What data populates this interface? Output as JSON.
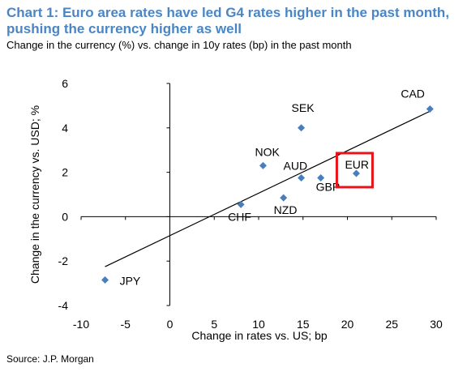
{
  "chart_data": {
    "type": "scatter",
    "title_line1": "Chart 1: Euro area rates have led G4 rates higher in the past month,",
    "title_line2": "pushing the currency higher as well",
    "subtitle": "Change in the currency (%) vs. change in 10y rates (bp) in the past month",
    "xlabel": "Change in rates vs. US; bp",
    "ylabel": "Change in the currency vs. USD; %",
    "xlim": [
      -10,
      30
    ],
    "ylim": [
      -4,
      6
    ],
    "x_ticks": [
      "-10",
      "-5",
      "0",
      "5",
      "10",
      "15",
      "20",
      "25",
      "30"
    ],
    "y_ticks": [
      "6",
      "4",
      "2",
      "0",
      "-2",
      "-4"
    ],
    "points": [
      {
        "label": "CAD",
        "x": 29.3,
        "y": 4.85
      },
      {
        "label": "SEK",
        "x": 14.8,
        "y": 4.0
      },
      {
        "label": "NOK",
        "x": 10.5,
        "y": 2.3
      },
      {
        "label": "AUD",
        "x": 14.8,
        "y": 1.75
      },
      {
        "label": "GBP",
        "x": 17.0,
        "y": 1.75
      },
      {
        "label": "EUR",
        "x": 21.0,
        "y": 1.95
      },
      {
        "label": "NZD",
        "x": 12.8,
        "y": 0.85
      },
      {
        "label": "CHF",
        "x": 8.0,
        "y": 0.55
      },
      {
        "label": "JPY",
        "x": -7.3,
        "y": -2.85
      }
    ],
    "trendline": {
      "x": [
        -7.3,
        29.3
      ],
      "y": [
        -2.25,
        4.75
      ]
    },
    "highlight": "EUR",
    "marker_color": "#4a7ebb",
    "highlight_color": "#e8141a"
  },
  "source": "Source: J.P. Morgan"
}
